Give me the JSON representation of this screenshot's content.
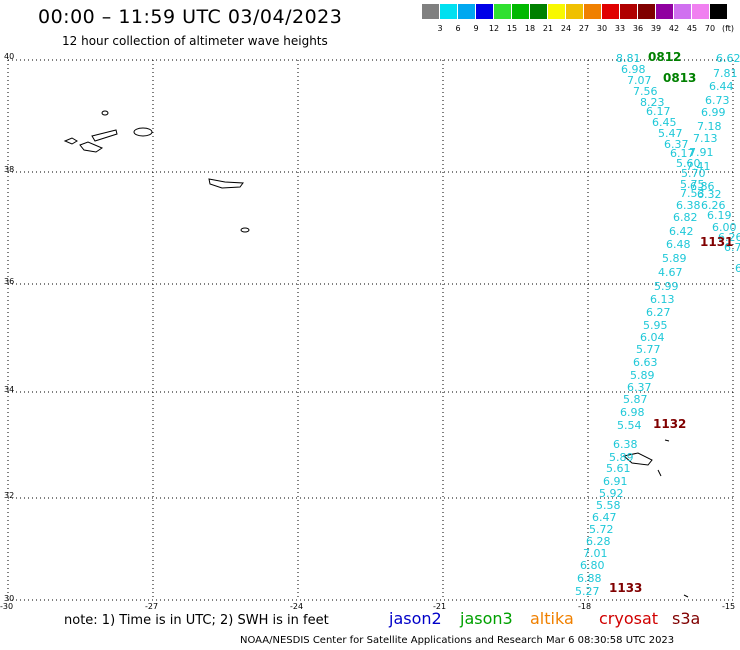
{
  "header": {
    "title": "00:00 – 11:59 UTC 03/04/2023",
    "subtitle": "12 hour collection of altimeter wave heights"
  },
  "color_scale": {
    "colors": [
      "#808080",
      "#00e0f0",
      "#00a8f0",
      "#0000e8",
      "#30e030",
      "#00b800",
      "#008000",
      "#f8f800",
      "#f0c000",
      "#f08000",
      "#e00000",
      "#b00000",
      "#800000",
      "#9000a0",
      "#d070f0",
      "#f080f0",
      "#000000"
    ],
    "ticks": [
      "3",
      "6",
      "9",
      "12",
      "15",
      "18",
      "21",
      "24",
      "27",
      "30",
      "33",
      "36",
      "39",
      "42",
      "45",
      "70",
      "(ft)"
    ]
  },
  "axes": {
    "lat_labels": [
      "40",
      "38",
      "36",
      "34",
      "32",
      "30"
    ],
    "lon_labels": [
      "-30",
      "-27",
      "-24",
      "-21",
      "-18",
      "-15"
    ]
  },
  "observations": [
    {
      "v": "8.81"
    },
    {
      "v": "6.98"
    },
    {
      "v": "7.07"
    },
    {
      "v": "7.56"
    },
    {
      "v": "8.23"
    },
    {
      "v": "6.17"
    },
    {
      "v": "6.45"
    },
    {
      "v": "5.47"
    },
    {
      "v": "6.37"
    },
    {
      "v": "6.17"
    },
    {
      "v": "5.60"
    },
    {
      "v": "5.70"
    },
    {
      "v": "5.75"
    },
    {
      "v": "7.53"
    },
    {
      "v": "6.38"
    },
    {
      "v": "6.82"
    },
    {
      "v": "6.42"
    },
    {
      "v": "6.48"
    },
    {
      "v": "5.89"
    },
    {
      "v": "4.67"
    },
    {
      "v": "5.99"
    },
    {
      "v": "6.13"
    },
    {
      "v": "6.27"
    },
    {
      "v": "5.95"
    },
    {
      "v": "6.04"
    },
    {
      "v": "5.77"
    },
    {
      "v": "6.63"
    },
    {
      "v": "5.89"
    },
    {
      "v": "6.37"
    },
    {
      "v": "5.87"
    },
    {
      "v": "6.98"
    },
    {
      "v": "5.54"
    },
    {
      "v": "6.38"
    },
    {
      "v": "5.89"
    },
    {
      "v": "5.61"
    },
    {
      "v": "6.91"
    },
    {
      "v": "5.92"
    },
    {
      "v": "5.58"
    },
    {
      "v": "6.47"
    },
    {
      "v": "5.72"
    },
    {
      "v": "6.28"
    },
    {
      "v": "7.01"
    },
    {
      "v": "6.80"
    },
    {
      "v": "6.88"
    },
    {
      "v": "5.27"
    },
    {
      "v": "6.62"
    },
    {
      "v": "7.81"
    },
    {
      "v": "6.44"
    },
    {
      "v": "6.73"
    },
    {
      "v": "6.99"
    },
    {
      "v": "7.18"
    },
    {
      "v": "7.13"
    },
    {
      "v": "7.91"
    },
    {
      "v": "7.41"
    },
    {
      "v": "6.86"
    },
    {
      "v": "6.32"
    },
    {
      "v": "6.26"
    },
    {
      "v": "6.19"
    },
    {
      "v": "6.00"
    },
    {
      "v": "6.26"
    },
    {
      "v": "6.76"
    },
    {
      "v": "6"
    }
  ],
  "passes": [
    {
      "label": "0812",
      "color": "#008000"
    },
    {
      "label": "0813",
      "color": "#008000"
    },
    {
      "label": "1131",
      "color": "#800000"
    },
    {
      "label": "1132",
      "color": "#800000"
    },
    {
      "label": "1133",
      "color": "#800000"
    }
  ],
  "note": "note:  1) Time is in UTC;  2) SWH is in feet",
  "satellites": [
    {
      "name": "jason2",
      "color": "#0000c8"
    },
    {
      "name": "jason3",
      "color": "#00a000"
    },
    {
      "name": "altika",
      "color": "#f08000"
    },
    {
      "name": "cryosat",
      "color": "#d00000"
    },
    {
      "name": "s3a",
      "color": "#800000"
    }
  ],
  "footer": "NOAA/NESDIS Center for Satellite Applications and Research    Mar  6 08:30:58 UTC 2023"
}
